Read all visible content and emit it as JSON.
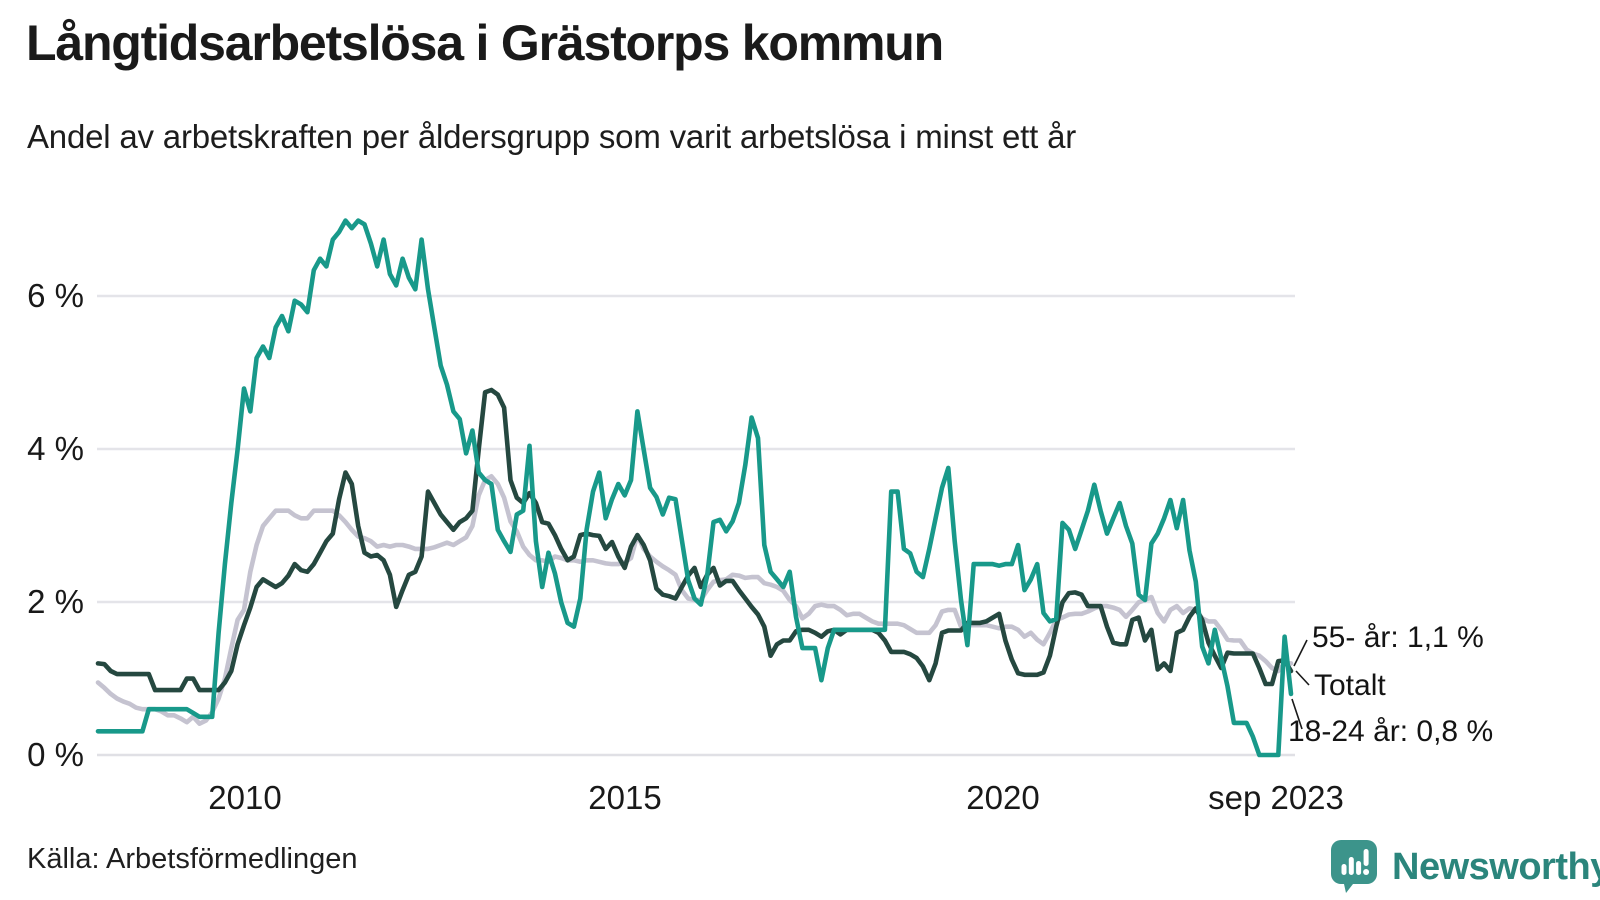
{
  "title": "Långtidsarbetslösa i Grästorps kommun",
  "subtitle": "Andel av arbetskraften per åldersgrupp som varit arbetslösa i minst ett år",
  "source": "Källa: Arbetsförmedlingen",
  "branding": {
    "name": "Newsworthy",
    "icon_color": "#3c948b",
    "text_color": "#2b857c"
  },
  "annotations": [
    {
      "text": "55- år: 1,1 %",
      "series": "55- år"
    },
    {
      "text": "Totalt",
      "series": "Totalt"
    },
    {
      "text": "18-24 år: 0,8 %",
      "series": "18-24 år"
    }
  ],
  "chart_data": {
    "type": "line",
    "title": "Långtidsarbetslösa i Grästorps kommun",
    "subtitle": "Andel av arbetskraften per åldersgrupp som varit arbetslösa i minst ett år",
    "x_start": "2008-01",
    "x_end": "2023-09",
    "frequency": "monthly",
    "x_ticks": [
      "2010",
      "2015",
      "2020",
      "sep 2023"
    ],
    "y_ticks": [
      "0 %",
      "2 %",
      "4 %",
      "6 %"
    ],
    "ylim": [
      0,
      7.3
    ],
    "unit": "percent",
    "grid": "horizontal",
    "legend_position": "end-of-line-labels",
    "series": [
      {
        "name": "Totalt",
        "color": "#c5c3d0",
        "end_value": 1.2,
        "values": [
          0.95,
          0.88,
          0.8,
          0.74,
          0.7,
          0.67,
          0.62,
          0.6,
          0.6,
          0.6,
          0.57,
          0.52,
          0.52,
          0.48,
          0.43,
          0.5,
          0.41,
          0.45,
          0.56,
          0.74,
          1.0,
          1.4,
          1.77,
          1.9,
          2.4,
          2.75,
          3.0,
          3.1,
          3.2,
          3.2,
          3.2,
          3.14,
          3.1,
          3.1,
          3.2,
          3.2,
          3.2,
          3.2,
          3.14,
          3.05,
          2.95,
          2.86,
          2.84,
          2.8,
          2.73,
          2.75,
          2.73,
          2.75,
          2.75,
          2.73,
          2.7,
          2.7,
          2.7,
          2.72,
          2.75,
          2.78,
          2.75,
          2.8,
          2.85,
          3.0,
          3.4,
          3.6,
          3.65,
          3.55,
          3.37,
          3.06,
          2.93,
          2.73,
          2.62,
          2.55,
          2.55,
          2.53,
          2.6,
          2.58,
          2.55,
          2.55,
          2.53,
          2.55,
          2.55,
          2.53,
          2.51,
          2.5,
          2.5,
          2.52,
          2.58,
          2.88,
          2.7,
          2.6,
          2.53,
          2.47,
          2.42,
          2.36,
          2.16,
          2.05,
          2.03,
          2.03,
          2.16,
          2.27,
          2.29,
          2.3,
          2.36,
          2.35,
          2.32,
          2.33,
          2.33,
          2.25,
          2.23,
          2.2,
          2.15,
          2.03,
          1.95,
          1.79,
          1.85,
          1.95,
          1.97,
          1.95,
          1.95,
          1.9,
          1.83,
          1.85,
          1.85,
          1.8,
          1.75,
          1.72,
          1.72,
          1.72,
          1.72,
          1.7,
          1.65,
          1.6,
          1.6,
          1.6,
          1.7,
          1.88,
          1.9,
          1.9,
          1.68,
          1.7,
          1.7,
          1.7,
          1.7,
          1.68,
          1.66,
          1.68,
          1.68,
          1.64,
          1.55,
          1.6,
          1.51,
          1.45,
          1.6,
          1.77,
          1.8,
          1.84,
          1.85,
          1.85,
          1.88,
          1.92,
          1.95,
          1.95,
          1.93,
          1.9,
          1.81,
          1.9,
          2.0,
          2.03,
          2.07,
          1.86,
          1.75,
          1.9,
          1.95,
          1.86,
          1.92,
          1.9,
          1.79,
          1.75,
          1.75,
          1.64,
          1.51,
          1.5,
          1.5,
          1.38,
          1.33,
          1.3,
          1.23,
          1.14,
          1.1,
          1.2,
          1.2
        ]
      },
      {
        "name": "55- år",
        "color": "#254840",
        "end_value": 1.1,
        "values": [
          1.2,
          1.19,
          1.1,
          1.06,
          1.06,
          1.06,
          1.06,
          1.06,
          1.06,
          0.85,
          0.85,
          0.85,
          0.85,
          0.85,
          1.0,
          1.0,
          0.85,
          0.85,
          0.85,
          0.85,
          0.95,
          1.1,
          1.45,
          1.7,
          1.93,
          2.2,
          2.3,
          2.25,
          2.2,
          2.25,
          2.35,
          2.5,
          2.42,
          2.4,
          2.5,
          2.65,
          2.8,
          2.9,
          3.35,
          3.7,
          3.55,
          3.0,
          2.65,
          2.6,
          2.62,
          2.55,
          2.36,
          1.94,
          2.16,
          2.36,
          2.4,
          2.6,
          3.45,
          3.3,
          3.15,
          3.05,
          2.95,
          3.05,
          3.1,
          3.2,
          4.0,
          4.75,
          4.78,
          4.72,
          4.55,
          3.6,
          3.37,
          3.3,
          3.43,
          3.3,
          3.05,
          3.03,
          2.88,
          2.7,
          2.55,
          2.6,
          2.88,
          2.9,
          2.88,
          2.87,
          2.7,
          2.79,
          2.6,
          2.45,
          2.73,
          2.88,
          2.75,
          2.55,
          2.18,
          2.1,
          2.08,
          2.05,
          2.2,
          2.35,
          2.45,
          2.2,
          2.36,
          2.45,
          2.22,
          2.28,
          2.28,
          2.16,
          2.05,
          1.94,
          1.84,
          1.68,
          1.3,
          1.45,
          1.5,
          1.5,
          1.62,
          1.64,
          1.64,
          1.6,
          1.55,
          1.62,
          1.64,
          1.58,
          1.64,
          1.64,
          1.64,
          1.64,
          1.64,
          1.6,
          1.5,
          1.35,
          1.35,
          1.35,
          1.32,
          1.27,
          1.16,
          0.98,
          1.2,
          1.6,
          1.63,
          1.63,
          1.63,
          1.73,
          1.73,
          1.73,
          1.75,
          1.8,
          1.85,
          1.5,
          1.25,
          1.07,
          1.05,
          1.05,
          1.05,
          1.08,
          1.3,
          1.68,
          2.0,
          2.12,
          2.13,
          2.1,
          1.95,
          1.95,
          1.95,
          1.68,
          1.47,
          1.45,
          1.45,
          1.77,
          1.8,
          1.5,
          1.64,
          1.12,
          1.2,
          1.1,
          1.6,
          1.64,
          1.81,
          1.92,
          1.77,
          1.47,
          1.3,
          1.14,
          1.34,
          1.33,
          1.33,
          1.33,
          1.33,
          1.14,
          0.93,
          0.93,
          1.23,
          1.24,
          1.1
        ]
      },
      {
        "name": "18-24 år",
        "color": "#18998a",
        "end_value": 0.8,
        "values": [
          0.31,
          0.31,
          0.31,
          0.31,
          0.31,
          0.31,
          0.31,
          0.31,
          0.6,
          0.6,
          0.6,
          0.6,
          0.6,
          0.6,
          0.6,
          0.55,
          0.5,
          0.5,
          0.5,
          1.6,
          2.5,
          3.3,
          4.0,
          4.8,
          4.5,
          5.2,
          5.35,
          5.2,
          5.6,
          5.75,
          5.55,
          5.95,
          5.9,
          5.8,
          6.35,
          6.5,
          6.4,
          6.75,
          6.85,
          7.0,
          6.9,
          7.0,
          6.95,
          6.7,
          6.4,
          6.75,
          6.3,
          6.15,
          6.5,
          6.25,
          6.1,
          6.75,
          6.1,
          5.6,
          5.1,
          4.85,
          4.5,
          4.4,
          3.95,
          4.25,
          3.7,
          3.6,
          3.55,
          2.95,
          2.8,
          2.66,
          3.15,
          3.2,
          4.05,
          2.8,
          2.2,
          2.65,
          2.38,
          2.0,
          1.73,
          1.68,
          2.05,
          2.95,
          3.45,
          3.7,
          3.1,
          3.35,
          3.55,
          3.4,
          3.6,
          4.5,
          4.0,
          3.5,
          3.38,
          3.15,
          3.37,
          3.35,
          2.82,
          2.29,
          2.05,
          1.97,
          2.35,
          3.05,
          3.08,
          2.93,
          3.06,
          3.3,
          3.8,
          4.42,
          4.15,
          2.75,
          2.4,
          2.3,
          2.2,
          2.4,
          1.81,
          1.4,
          1.4,
          1.4,
          0.98,
          1.4,
          1.64,
          1.64,
          1.64,
          1.64,
          1.64,
          1.64,
          1.64,
          1.64,
          1.64,
          3.45,
          3.45,
          2.7,
          2.64,
          2.4,
          2.33,
          2.7,
          3.1,
          3.5,
          3.76,
          2.8,
          2.03,
          1.44,
          2.5,
          2.5,
          2.5,
          2.5,
          2.48,
          2.5,
          2.5,
          2.75,
          2.16,
          2.3,
          2.5,
          1.86,
          1.75,
          1.78,
          3.04,
          2.95,
          2.7,
          2.95,
          3.2,
          3.54,
          3.2,
          2.9,
          3.1,
          3.3,
          3.0,
          2.77,
          2.1,
          2.03,
          2.77,
          2.9,
          3.1,
          3.34,
          2.97,
          3.34,
          2.68,
          2.27,
          1.42,
          1.2,
          1.64,
          1.27,
          0.9,
          0.42,
          0.42,
          0.42,
          0.24,
          0.0,
          0.0,
          0.0,
          0.0,
          1.55,
          0.8
        ]
      }
    ]
  }
}
